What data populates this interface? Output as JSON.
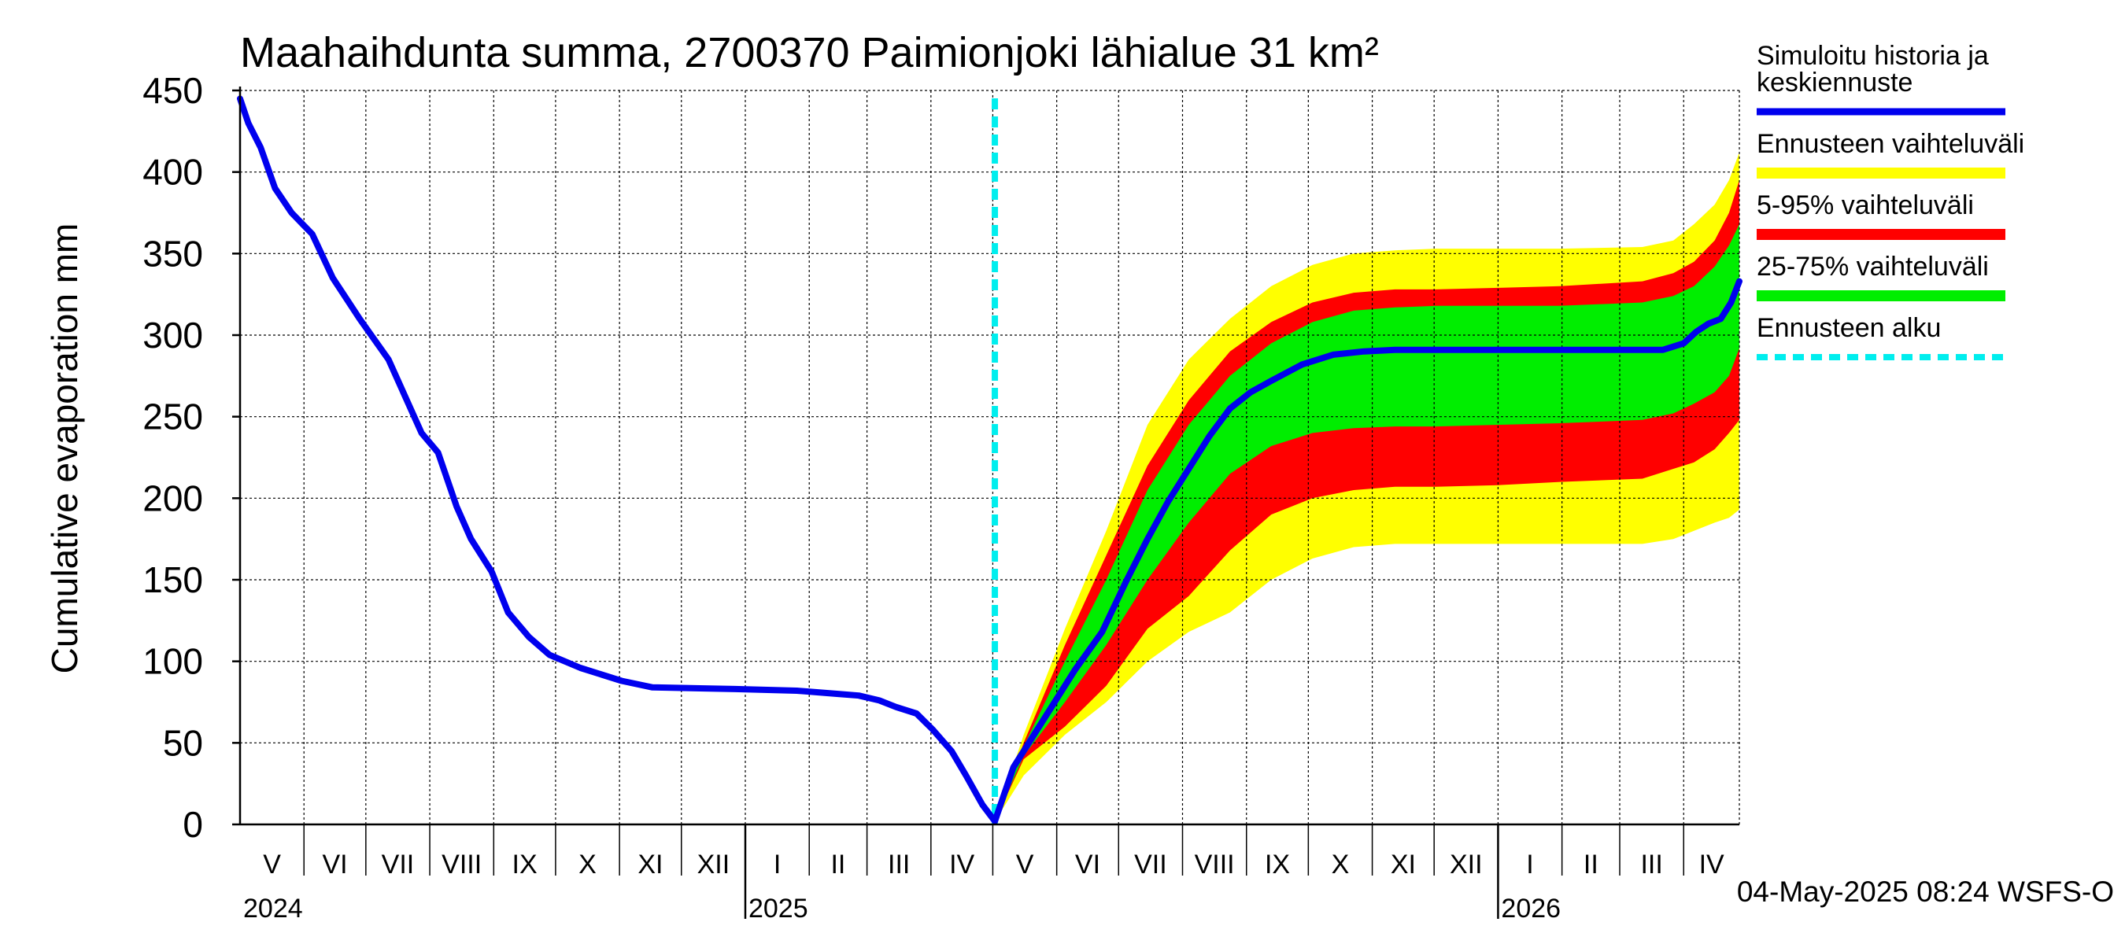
{
  "chart_data": {
    "type": "line",
    "title": "Maahaihdunta summa, 2700370 Paimionjoki lähialue 31 km²",
    "ylabel": "Cumulative evaporation   mm",
    "xlabel": "",
    "ylim": [
      0,
      450
    ],
    "yticks": [
      0,
      50,
      100,
      150,
      200,
      250,
      300,
      350,
      400,
      450
    ],
    "grid": true,
    "timestamp": "04-May-2025 08:24 WSFS-O",
    "x_range_days": [
      0,
      727
    ],
    "forecast_start_day": 366,
    "months": [
      {
        "label": "V",
        "start": 0,
        "end": 31
      },
      {
        "label": "VI",
        "start": 31,
        "end": 61
      },
      {
        "label": "VII",
        "start": 61,
        "end": 92
      },
      {
        "label": "VIII",
        "start": 92,
        "end": 123
      },
      {
        "label": "IX",
        "start": 123,
        "end": 153
      },
      {
        "label": "X",
        "start": 153,
        "end": 184
      },
      {
        "label": "XI",
        "start": 184,
        "end": 214
      },
      {
        "label": "XII",
        "start": 214,
        "end": 245
      },
      {
        "label": "I",
        "start": 245,
        "end": 276
      },
      {
        "label": "II",
        "start": 276,
        "end": 304
      },
      {
        "label": "III",
        "start": 304,
        "end": 335
      },
      {
        "label": "IV",
        "start": 335,
        "end": 365
      },
      {
        "label": "V",
        "start": 365,
        "end": 396
      },
      {
        "label": "VI",
        "start": 396,
        "end": 426
      },
      {
        "label": "VII",
        "start": 426,
        "end": 457
      },
      {
        "label": "VIII",
        "start": 457,
        "end": 488
      },
      {
        "label": "IX",
        "start": 488,
        "end": 518
      },
      {
        "label": "X",
        "start": 518,
        "end": 549
      },
      {
        "label": "XI",
        "start": 549,
        "end": 579
      },
      {
        "label": "XII",
        "start": 579,
        "end": 610
      },
      {
        "label": "I",
        "start": 610,
        "end": 641
      },
      {
        "label": "II",
        "start": 641,
        "end": 669
      },
      {
        "label": "III",
        "start": 669,
        "end": 700
      },
      {
        "label": "IV",
        "start": 700,
        "end": 730
      }
    ],
    "years": [
      {
        "label": "2024",
        "day": 0
      },
      {
        "label": "2025",
        "day": 245
      },
      {
        "label": "2026",
        "day": 610
      }
    ],
    "legend": {
      "position": "right",
      "entries": [
        {
          "label_lines": [
            "Simuloitu historia ja",
            "keskiennuste"
          ],
          "color": "#0000ee",
          "style": "line"
        },
        {
          "label_lines": [
            "Ennusteen vaihteluväli"
          ],
          "color": "#ffff00",
          "style": "band"
        },
        {
          "label_lines": [
            "5-95% vaihteluväli"
          ],
          "color": "#ff0000",
          "style": "band"
        },
        {
          "label_lines": [
            "25-75% vaihteluväli"
          ],
          "color": "#00ee00",
          "style": "band"
        },
        {
          "label_lines": [
            "Ennusteen alku"
          ],
          "color": "#00eeee",
          "style": "dashed"
        }
      ]
    },
    "series": [
      {
        "name": "Simuloitu historia ja keskiennuste",
        "color": "#0000ee",
        "x": [
          0,
          4,
          10,
          17,
          25,
          35,
          45,
          58,
          72,
          88,
          96,
          105,
          112,
          122,
          130,
          140,
          150,
          165,
          185,
          200,
          240,
          270,
          290,
          300,
          310,
          318,
          328,
          336,
          345,
          352,
          360,
          366,
          375,
          390,
          405,
          418,
          430,
          440,
          450,
          460,
          470,
          480,
          490,
          500,
          515,
          530,
          545,
          560,
          580,
          600,
          630,
          660,
          690,
          700,
          706,
          712,
          718,
          723,
          727
        ],
        "values": [
          445,
          430,
          415,
          390,
          375,
          362,
          335,
          310,
          285,
          240,
          228,
          195,
          175,
          155,
          130,
          115,
          104,
          96,
          88,
          84,
          83,
          82,
          80,
          79,
          76,
          72,
          68,
          58,
          45,
          30,
          12,
          2,
          35,
          65,
          95,
          118,
          150,
          175,
          198,
          218,
          238,
          255,
          265,
          272,
          282,
          288,
          290,
          291,
          291,
          291,
          291,
          291,
          291,
          295,
          302,
          307,
          310,
          320,
          333
        ]
      },
      {
        "name": "Ennusteen vaihteluväli",
        "color": "#ffff00",
        "x": [
          366,
          380,
          400,
          420,
          440,
          460,
          480,
          500,
          520,
          540,
          560,
          580,
          610,
          640,
          680,
          695,
          705,
          715,
          722,
          727
        ],
        "upper": [
          2,
          55,
          120,
          180,
          245,
          285,
          310,
          330,
          343,
          350,
          352,
          353,
          353,
          353,
          354,
          358,
          368,
          380,
          395,
          412
        ],
        "lower": [
          2,
          30,
          55,
          75,
          100,
          118,
          130,
          150,
          163,
          170,
          172,
          172,
          172,
          172,
          172,
          175,
          180,
          185,
          188,
          193
        ]
      },
      {
        "name": "5-95% vaihteluväli",
        "color": "#ff0000",
        "x": [
          366,
          380,
          400,
          420,
          440,
          460,
          480,
          500,
          520,
          540,
          560,
          580,
          610,
          640,
          680,
          695,
          705,
          715,
          722,
          727
        ],
        "upper": [
          2,
          50,
          110,
          165,
          220,
          260,
          290,
          308,
          320,
          326,
          328,
          328,
          329,
          330,
          333,
          338,
          345,
          358,
          375,
          395
        ],
        "lower": [
          2,
          40,
          60,
          85,
          120,
          140,
          168,
          190,
          200,
          205,
          207,
          207,
          208,
          210,
          212,
          218,
          222,
          230,
          240,
          248
        ]
      },
      {
        "name": "25-75% vaihteluväli",
        "color": "#00ee00",
        "x": [
          366,
          380,
          400,
          420,
          440,
          460,
          480,
          500,
          520,
          540,
          560,
          580,
          610,
          640,
          680,
          695,
          705,
          715,
          722,
          727
        ],
        "upper": [
          2,
          48,
          100,
          150,
          205,
          245,
          275,
          295,
          308,
          315,
          317,
          318,
          318,
          318,
          320,
          324,
          330,
          342,
          355,
          368
        ],
        "lower": [
          2,
          42,
          75,
          110,
          150,
          185,
          215,
          232,
          240,
          243,
          244,
          244,
          245,
          246,
          248,
          252,
          258,
          265,
          275,
          292
        ]
      }
    ]
  }
}
